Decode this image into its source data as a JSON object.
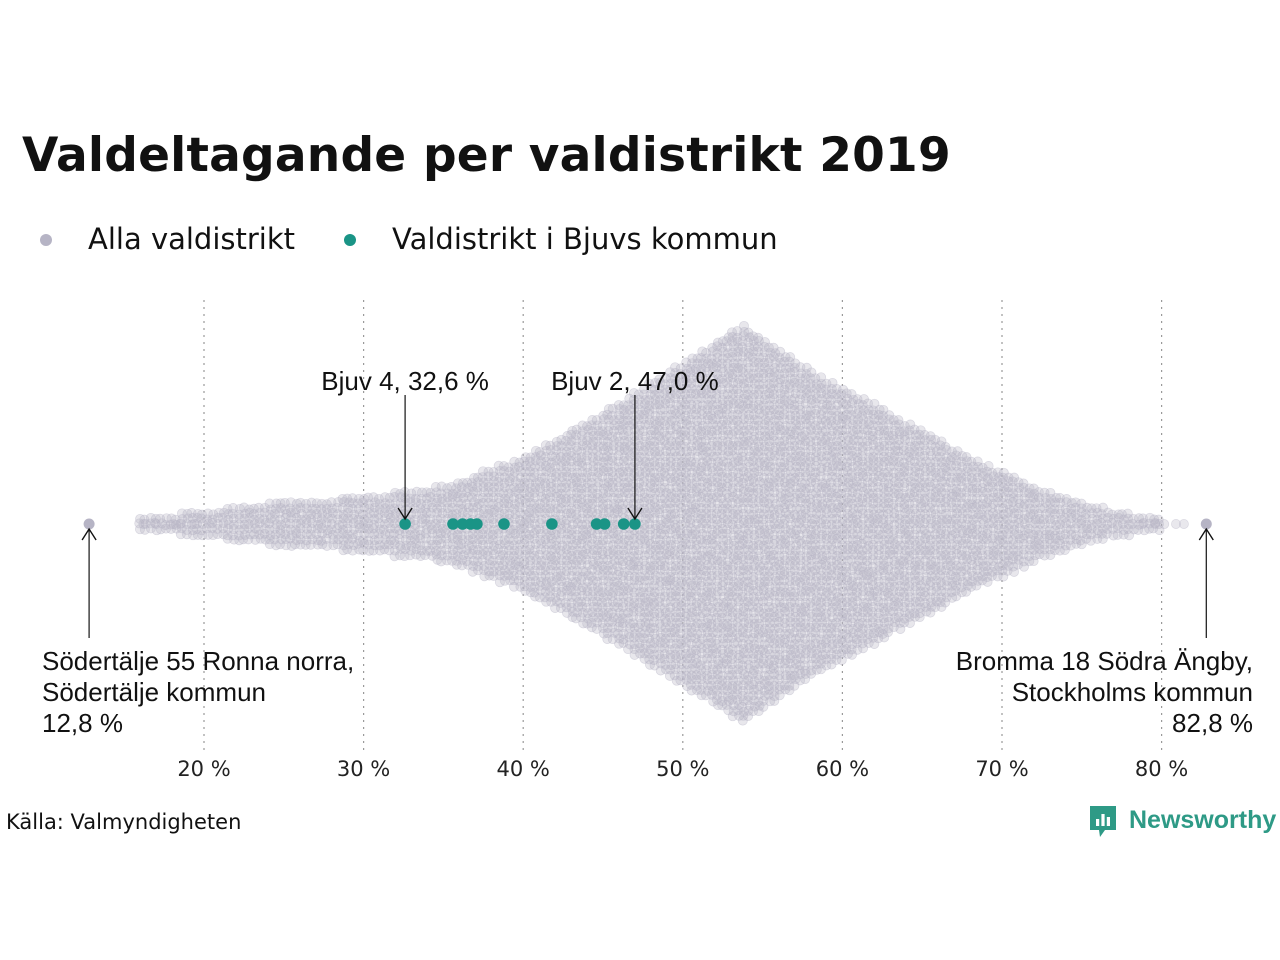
{
  "chart_data": {
    "type": "scatter",
    "subtype": "beeswarm",
    "title": "Valdeltagande per valdistrikt 2019",
    "xlabel": "",
    "ylabel": "",
    "xlim": [
      6,
      86
    ],
    "x_ticks": [
      20,
      30,
      40,
      50,
      60,
      70,
      80
    ],
    "x_tick_labels": [
      "20 %",
      "30 %",
      "40 %",
      "50 %",
      "60 %",
      "70 %",
      "80 %"
    ],
    "grid": "vertical dotted",
    "legend_position": "top-left",
    "series": [
      {
        "name": "Alla valdistrikt",
        "color": "#b6b4c5",
        "density_profile": [
          {
            "x": 16.0,
            "half_width": 0.3
          },
          {
            "x": 20.0,
            "half_width": 0.6
          },
          {
            "x": 25.0,
            "half_width": 1.1
          },
          {
            "x": 30.0,
            "half_width": 1.3
          },
          {
            "x": 35.0,
            "half_width": 1.8
          },
          {
            "x": 40.0,
            "half_width": 3.2
          },
          {
            "x": 45.0,
            "half_width": 5.3
          },
          {
            "x": 50.0,
            "half_width": 7.7
          },
          {
            "x": 53.8,
            "half_width": 9.5
          },
          {
            "x": 58.0,
            "half_width": 7.3
          },
          {
            "x": 63.0,
            "half_width": 5.3
          },
          {
            "x": 68.0,
            "half_width": 3.2
          },
          {
            "x": 73.0,
            "half_width": 1.5
          },
          {
            "x": 77.0,
            "half_width": 0.6
          },
          {
            "x": 80.5,
            "half_width": 0.2
          }
        ],
        "extremes": [
          12.8,
          82.8
        ]
      },
      {
        "name": "Valdistrikt i Bjuvs kommun",
        "color": "#1a9486",
        "values": [
          32.6,
          35.6,
          36.2,
          36.7,
          37.1,
          38.8,
          41.8,
          44.6,
          45.1,
          46.3,
          47.0
        ]
      }
    ],
    "annotations": [
      {
        "id": "bjuv4",
        "x": 32.6,
        "lines": [
          "Bjuv 4, 32,6 %"
        ],
        "position": "above"
      },
      {
        "id": "bjuv2",
        "x": 47.0,
        "lines": [
          "Bjuv 2, 47,0 %"
        ],
        "position": "above"
      },
      {
        "id": "min",
        "x": 12.8,
        "lines": [
          "Södertälje 55 Ronna norra,",
          "Södertälje kommun",
          "12,8 %"
        ],
        "position": "below-left"
      },
      {
        "id": "max",
        "x": 82.8,
        "lines": [
          "Bromma 18 Södra Ängby,",
          "Stockholms kommun",
          "82,8 %"
        ],
        "position": "below-right"
      }
    ]
  },
  "legend": [
    {
      "label": "Alla valdistrikt",
      "color": "#b6b4c5"
    },
    {
      "label": "Valdistrikt i Bjuvs kommun",
      "color": "#1a9486"
    }
  ],
  "source": "Källa: Valmyndigheten",
  "brand": {
    "name": "Newsworthy",
    "color": "#2e9a86",
    "icon": "newsworthy-logo-icon"
  }
}
